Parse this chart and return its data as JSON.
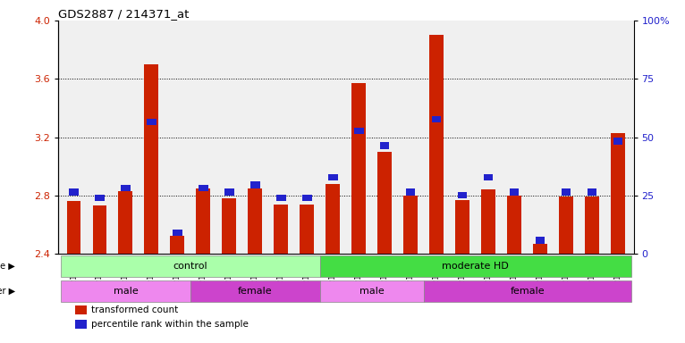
{
  "title": "GDS2887 / 214371_at",
  "samples": [
    "GSM217771",
    "GSM217772",
    "GSM217773",
    "GSM217774",
    "GSM217775",
    "GSM217766",
    "GSM217767",
    "GSM217768",
    "GSM217769",
    "GSM217770",
    "GSM217784",
    "GSM217785",
    "GSM217786",
    "GSM217787",
    "GSM217776",
    "GSM217777",
    "GSM217778",
    "GSM217779",
    "GSM217780",
    "GSM217781",
    "GSM217782",
    "GSM217783"
  ],
  "red_values": [
    2.76,
    2.73,
    2.83,
    3.7,
    2.52,
    2.85,
    2.78,
    2.85,
    2.74,
    2.74,
    2.88,
    3.57,
    3.1,
    2.8,
    3.9,
    2.77,
    2.84,
    2.8,
    2.47,
    2.79,
    2.79,
    3.23
  ],
  "blue_values": [
    2.8,
    2.76,
    2.83,
    3.28,
    2.52,
    2.83,
    2.8,
    2.85,
    2.76,
    2.76,
    2.9,
    3.22,
    3.12,
    2.8,
    3.3,
    2.78,
    2.9,
    2.8,
    2.47,
    2.8,
    2.8,
    3.15
  ],
  "ymin": 2.4,
  "ymax": 4.0,
  "yticks_red": [
    2.4,
    2.8,
    3.2,
    3.6,
    4.0
  ],
  "yticks_blue": [
    0,
    25,
    50,
    75,
    100
  ],
  "ytick_labels_blue": [
    "0",
    "25",
    "50",
    "75",
    "100%"
  ],
  "grid_lines": [
    2.8,
    3.2,
    3.6
  ],
  "bar_width": 0.55,
  "bar_color_red": "#cc2200",
  "bar_color_blue": "#2222cc",
  "bg_color": "#f0f0f0",
  "disease_state_groups": [
    {
      "label": "control",
      "start": 0,
      "end": 10,
      "color": "#aaffaa"
    },
    {
      "label": "moderate HD",
      "start": 10,
      "end": 22,
      "color": "#44dd44"
    }
  ],
  "gender_groups": [
    {
      "label": "male",
      "start": 0,
      "end": 5,
      "color": "#ee88ee"
    },
    {
      "label": "female",
      "start": 5,
      "end": 10,
      "color": "#cc44cc"
    },
    {
      "label": "male",
      "start": 10,
      "end": 14,
      "color": "#ee88ee"
    },
    {
      "label": "female",
      "start": 14,
      "end": 22,
      "color": "#cc44cc"
    }
  ],
  "legend_items": [
    {
      "label": "transformed count",
      "color": "#cc2200"
    },
    {
      "label": "percentile rank within the sample",
      "color": "#2222cc"
    }
  ]
}
